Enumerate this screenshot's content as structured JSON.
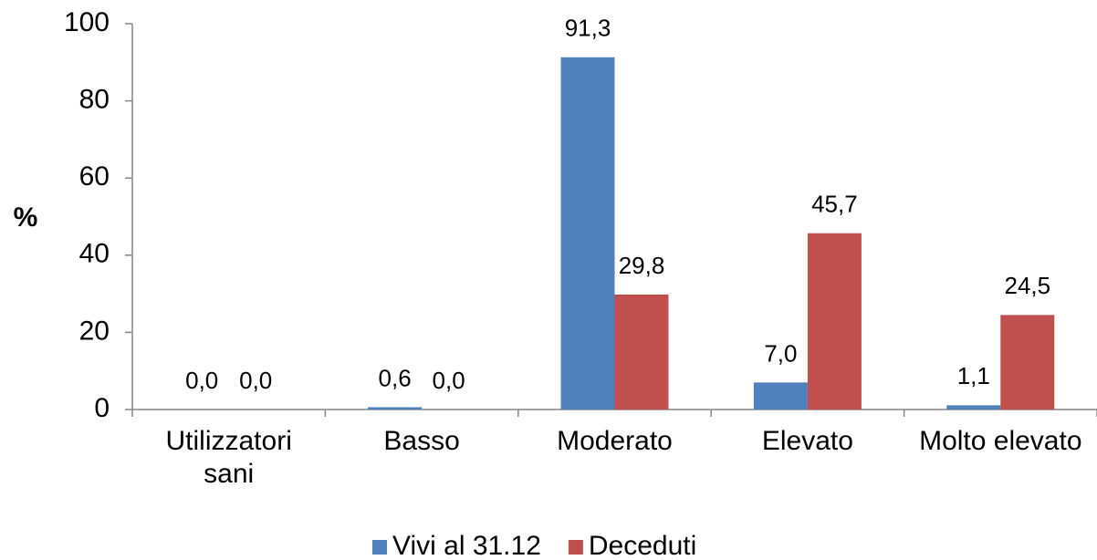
{
  "chart_data": {
    "type": "bar",
    "y_label": "%",
    "categories": [
      "Utilizzatori sani",
      "Basso",
      "Moderato",
      "Elevato",
      "Molto elevato"
    ],
    "series": [
      {
        "name": "Vivi al 31.12",
        "color": "#4f81bd",
        "values": [
          0.0,
          0.6,
          91.3,
          7.0,
          1.1
        ],
        "value_labels": [
          "0,0",
          "0,6",
          "91,3",
          "7,0",
          "1,1"
        ]
      },
      {
        "name": "Deceduti",
        "color": "#c0504d",
        "values": [
          0.0,
          0.0,
          29.8,
          45.7,
          24.5
        ],
        "value_labels": [
          "0,0",
          "0,0",
          "29,8",
          "45,7",
          "24,5"
        ]
      }
    ],
    "ylim": [
      0,
      100
    ],
    "yticks": [
      0,
      20,
      40,
      60,
      80,
      100
    ],
    "grid": false,
    "legend": "bottom"
  }
}
